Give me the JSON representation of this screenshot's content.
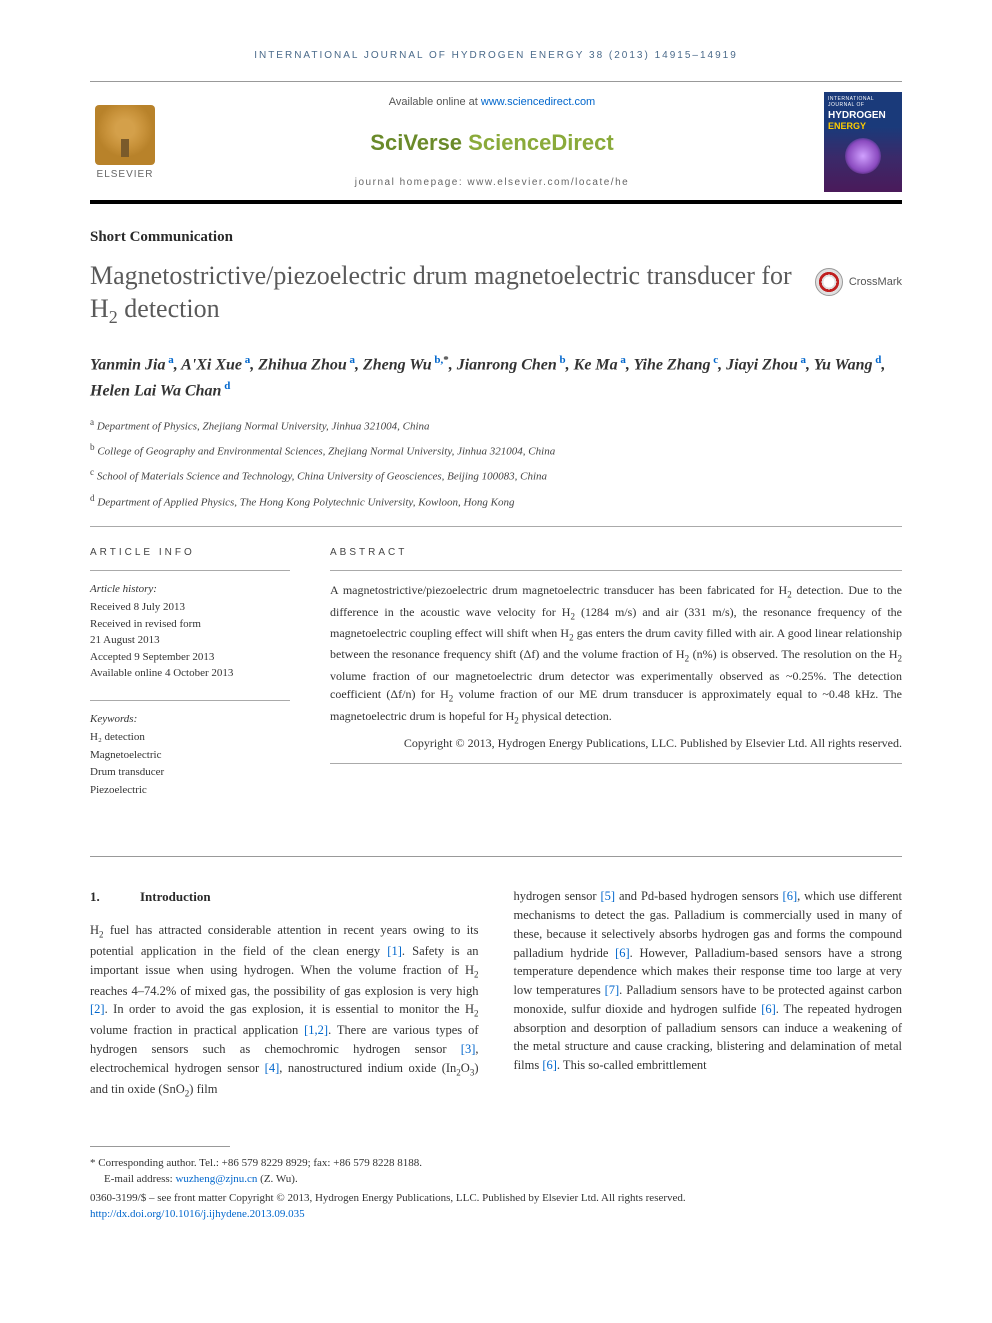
{
  "running_head": "INTERNATIONAL JOURNAL OF HYDROGEN ENERGY 38 (2013) 14915–14919",
  "masthead": {
    "elsevier": "ELSEVIER",
    "available_prefix": "Available online at ",
    "available_url": "www.sciencedirect.com",
    "sciverse_a": "SciVerse ",
    "sciverse_b": "ScienceDirect",
    "homepage": "journal homepage: www.elsevier.com/locate/he",
    "cover_top": "INTERNATIONAL JOURNAL OF",
    "cover_h": "HYDROGEN",
    "cover_e": "ENERGY"
  },
  "article_type": "Short Communication",
  "title_html": "Magnetostrictive/piezoelectric drum magnetoelectric transducer for H<sub>2</sub> detection",
  "crossmark": "CrossMark",
  "authors": [
    {
      "name": "Yanmin Jia",
      "aff": "a"
    },
    {
      "name": "A'Xi Xue",
      "aff": "a"
    },
    {
      "name": "Zhihua Zhou",
      "aff": "a"
    },
    {
      "name": "Zheng Wu",
      "aff": "b",
      "corr": true
    },
    {
      "name": "Jianrong Chen",
      "aff": "b"
    },
    {
      "name": "Ke Ma",
      "aff": "a"
    },
    {
      "name": "Yihe Zhang",
      "aff": "c"
    },
    {
      "name": "Jiayi Zhou",
      "aff": "a"
    },
    {
      "name": "Yu Wang",
      "aff": "d"
    },
    {
      "name": "Helen Lai Wa Chan",
      "aff": "d"
    }
  ],
  "affiliations": {
    "a": "Department of Physics, Zhejiang Normal University, Jinhua 321004, China",
    "b": "College of Geography and Environmental Sciences, Zhejiang Normal University, Jinhua 321004, China",
    "c": "School of Materials Science and Technology, China University of Geosciences, Beijing 100083, China",
    "d": "Department of Applied Physics, The Hong Kong Polytechnic University, Kowloon, Hong Kong"
  },
  "info": {
    "head": "ARTICLE INFO",
    "history_label": "Article history:",
    "history": [
      "Received 8 July 2013",
      "Received in revised form",
      "21 August 2013",
      "Accepted 9 September 2013",
      "Available online 4 October 2013"
    ],
    "keywords_label": "Keywords:",
    "keywords": [
      "H₂ detection",
      "Magnetoelectric",
      "Drum transducer",
      "Piezoelectric"
    ]
  },
  "abstract": {
    "head": "ABSTRACT",
    "text_html": "A magnetostrictive/piezoelectric drum magnetoelectric transducer has been fabricated for H<sub>2</sub> detection. Due to the difference in the acoustic wave velocity for H<sub>2</sub> (1284 m/s) and air (331 m/s), the resonance frequency of the magnetoelectric coupling effect will shift when H<sub>2</sub> gas enters the drum cavity filled with air. A good linear relationship between the resonance frequency shift (Δf) and the volume fraction of H<sub>2</sub> (n%) is observed. The resolution on the H<sub>2</sub> volume fraction of our magnetoelectric drum detector was experimentally observed as ~0.25%. The detection coefficient (Δf/n) for H<sub>2</sub> volume fraction of our ME drum transducer is approximately equal to ~0.48 kHz. The magnetoelectric drum is hopeful for H<sub>2</sub> physical detection.",
    "copyright": "Copyright © 2013, Hydrogen Energy Publications, LLC. Published by Elsevier Ltd. All rights reserved."
  },
  "section1": {
    "num": "1.",
    "title": "Introduction",
    "col1_html": "H<sub>2</sub> fuel has attracted considerable attention in recent years owing to its potential application in the field of the clean energy <span class=\"ref-link\">[1]</span>. Safety is an important issue when using hydrogen. When the volume fraction of H<sub>2</sub> reaches 4–74.2% of mixed gas, the possibility of gas explosion is very high <span class=\"ref-link\">[2]</span>. In order to avoid the gas explosion, it is essential to monitor the H<sub>2</sub> volume fraction in practical application <span class=\"ref-link\">[1,2]</span>. There are various types of hydrogen sensors such as chemochromic hydrogen sensor <span class=\"ref-link\">[3]</span>, electrochemical hydrogen sensor <span class=\"ref-link\">[4]</span>, nanostructured indium oxide (In<sub>2</sub>O<sub>3</sub>) and tin oxide (SnO<sub>2</sub>) film",
    "col2_html": "hydrogen sensor <span class=\"ref-link\">[5]</span> and Pd-based hydrogen sensors <span class=\"ref-link\">[6]</span>, which use different mechanisms to detect the gas. Palladium is commercially used in many of these, because it selectively absorbs hydrogen gas and forms the compound palladium hydride <span class=\"ref-link\">[6]</span>. However, Palladium-based sensors have a strong temperature dependence which makes their response time too large at very low temperatures <span class=\"ref-link\">[7]</span>. Palladium sensors have to be protected against carbon monoxide, sulfur dioxide and hydrogen sulfide <span class=\"ref-link\">[6]</span>. The repeated hydrogen absorption and desorption of palladium sensors can induce a weakening of the metal structure and cause cracking, blistering and delamination of metal films <span class=\"ref-link\">[6]</span>. This so-called embrittlement"
  },
  "footnotes": {
    "corr": "* Corresponding author. Tel.: +86 579 8229 8929; fax: +86 579 8228 8188.",
    "email_label": "E-mail address: ",
    "email": "wuzheng@zjnu.cn",
    "email_suffix": " (Z. Wu).",
    "line1": "0360-3199/$ – see front matter Copyright © 2013, Hydrogen Energy Publications, LLC. Published by Elsevier Ltd. All rights reserved.",
    "doi": "http://dx.doi.org/10.1016/j.ijhydene.2013.09.035"
  },
  "colors": {
    "link": "#0066cc",
    "title_gray": "#5a5a5a",
    "head_blue": "#4a6a8a"
  }
}
